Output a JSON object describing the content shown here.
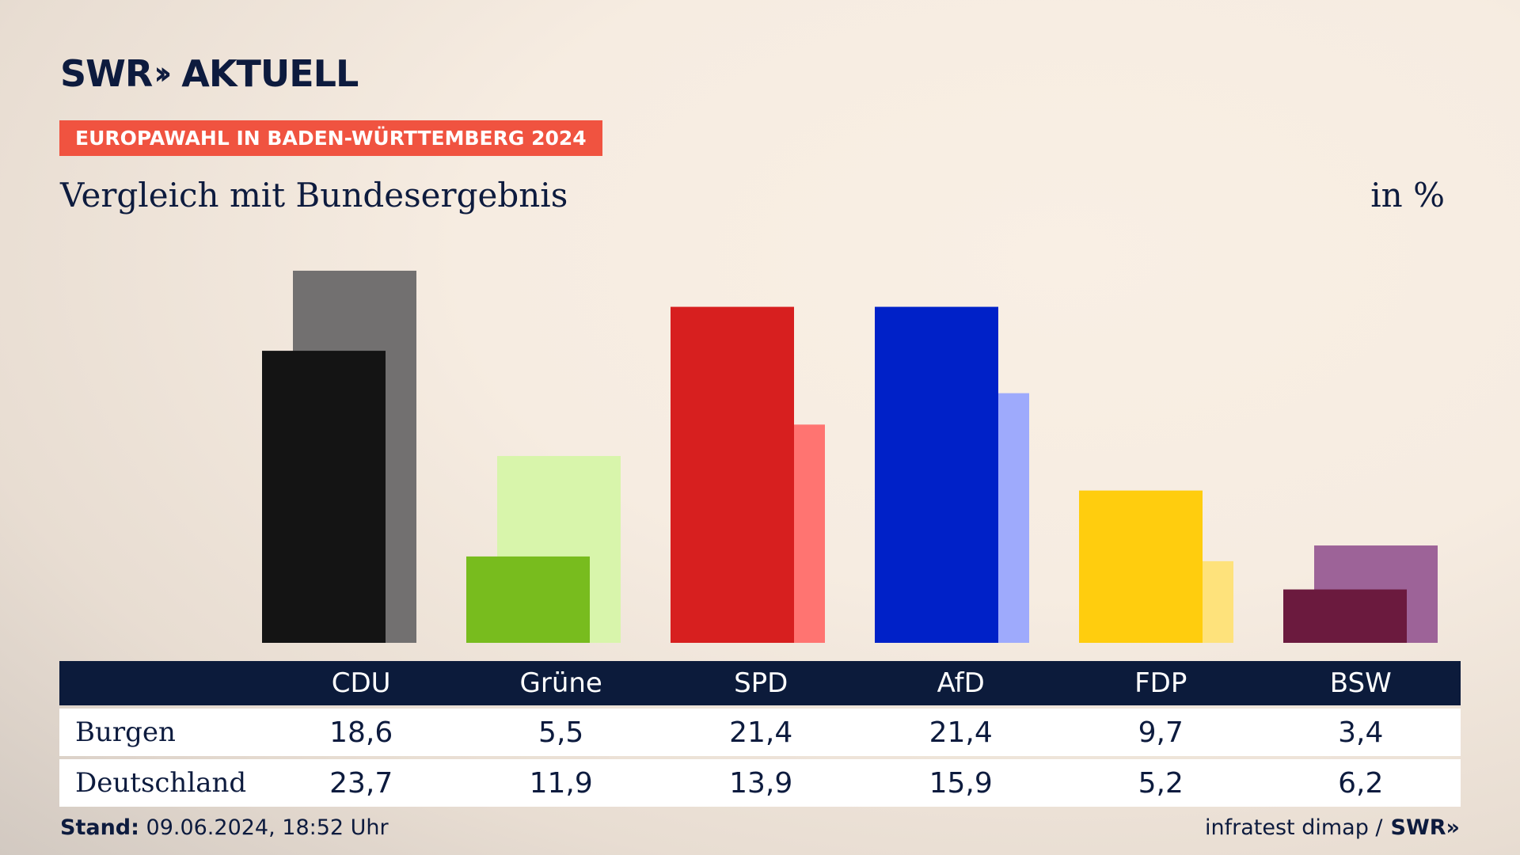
{
  "header": {
    "logo_swr": "SWR",
    "logo_chevrons": "»",
    "logo_aktuell": "AKTUELL",
    "banner": "EUROPAWAHL IN BADEN-WÜRTTEMBERG 2024",
    "subtitle": "Vergleich mit Bundesergebnis",
    "unit": "in %"
  },
  "table": {
    "row1_label": "Burgen",
    "row2_label": "Deutschland",
    "parties": [
      "CDU",
      "Grüne",
      "SPD",
      "AfD",
      "FDP",
      "BSW"
    ],
    "row1_values": [
      "18,6",
      "5,5",
      "21,4",
      "21,4",
      "9,7",
      "3,4"
    ],
    "row2_values": [
      "23,7",
      "11,9",
      "13,9",
      "15,9",
      "5,2",
      "6,2"
    ]
  },
  "footer": {
    "stand_label": "Stand:",
    "stand_value": "09.06.2024, 18:52 Uhr",
    "source": "infratest dimap /",
    "source_logo": "SWR»"
  },
  "chart_data": {
    "type": "bar",
    "title": "Vergleich mit Bundesergebnis",
    "ylabel": "in %",
    "categories": [
      "CDU",
      "Grüne",
      "SPD",
      "AfD",
      "FDP",
      "BSW"
    ],
    "series": [
      {
        "name": "Burgen",
        "values": [
          18.6,
          5.5,
          21.4,
          21.4,
          9.7,
          3.4
        ],
        "colors": [
          "#141414",
          "#78bc1e",
          "#d71f1f",
          "#0021c8",
          "#ffcd0e",
          "#6b1a3e"
        ]
      },
      {
        "name": "Deutschland",
        "values": [
          23.7,
          11.9,
          13.9,
          15.9,
          5.2,
          6.2
        ],
        "colors": [
          "#727070",
          "#d8f5ab",
          "#ff7471",
          "#9eaafc",
          "#fee27b",
          "#9d6398"
        ]
      }
    ],
    "ylim": [
      0,
      24
    ]
  }
}
